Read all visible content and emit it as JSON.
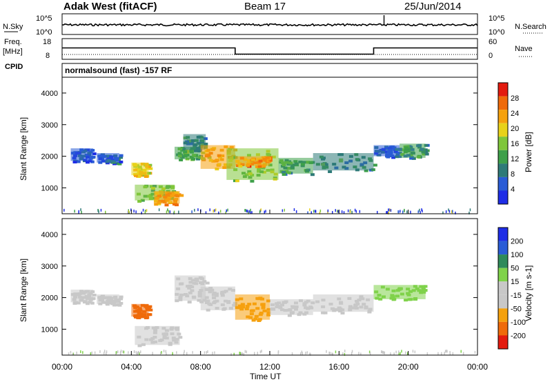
{
  "header": {
    "station": "Adak West (fitACF)",
    "beam": "Beam 17",
    "date": "25/Jun/2014"
  },
  "left_labels": {
    "nsky": "N.Sky",
    "freq_line1": "Freq.",
    "freq_line2": "[MHz]",
    "cpid": "CPID"
  },
  "right_labels": {
    "nsearch": "N.Search",
    "nave": "Nave"
  },
  "cpid_text": "normalsound (fast) -157 RF",
  "colors": {
    "power_scale": [
      "#1e2de6",
      "#2a5cd6",
      "#2e7a78",
      "#3ea04a",
      "#7fc63a",
      "#e8d21a",
      "#f5a10e",
      "#ef6a0a",
      "#e31b0f"
    ],
    "velocity_scale": [
      "#e31b0f",
      "#ef6a0a",
      "#f5a10e",
      "#c8c8c8",
      "#c8c8c8",
      "#7fd24a",
      "#2e8a5a",
      "#2a5cd6",
      "#1e2de6"
    ],
    "ground_scatter": "#c8c8c8"
  },
  "chart_data": [
    {
      "type": "line",
      "panel": "noise",
      "xlabel": "",
      "ylabel_left": "N.Sky",
      "ylabel_right": "N.Search",
      "yticks_left": [
        "10^5",
        "10^0"
      ],
      "yticks_right": [
        "10^5",
        "10^0"
      ],
      "x_range_hours": [
        0,
        24
      ],
      "series": [
        {
          "name": "N.Sky",
          "x_hours": [
            0,
            24
          ],
          "values": [
            10,
            10
          ]
        }
      ],
      "annotations": [
        {
          "x_hours": 18.6,
          "note": "spike"
        }
      ]
    },
    {
      "type": "line",
      "panel": "frequency",
      "ylabel_left": "Freq. [MHz]",
      "ylabel_right": "Nave",
      "yticks_left": [
        "18",
        "8"
      ],
      "yticks_right": [
        "60",
        "0"
      ],
      "x_range_hours": [
        0,
        24
      ],
      "series": [
        {
          "name": "Freq.",
          "x_hours": [
            0,
            10,
            10,
            18,
            18,
            24
          ],
          "values": [
            13.5,
            13.5,
            10.5,
            10.5,
            13.5,
            13.5
          ]
        },
        {
          "name": "Nave",
          "x_hours": [
            0,
            24
          ],
          "values": [
            14,
            14
          ]
        }
      ]
    },
    {
      "type": "heatmap",
      "panel": "power",
      "ylabel": "Slant Range [km]",
      "ylim": [
        180,
        4500
      ],
      "yticks": [
        1000,
        2000,
        3000,
        4000
      ],
      "xlim_hours": [
        0,
        24
      ],
      "colorbar_label": "Power [dB]",
      "colorbar_ticks": [
        "28",
        "24",
        "20",
        "16",
        "12",
        "8",
        "4"
      ],
      "colorbar_range": [
        0,
        30
      ],
      "echo_regions": [
        {
          "t0": 0.5,
          "t1": 1.8,
          "r0": 1850,
          "r1": 2250,
          "value": 5
        },
        {
          "t0": 2.0,
          "t1": 3.3,
          "r0": 1800,
          "r1": 2100,
          "value": 6
        },
        {
          "t0": 4.0,
          "t1": 5.0,
          "r0": 1400,
          "r1": 1800,
          "value": 18
        },
        {
          "t0": 4.2,
          "t1": 6.5,
          "r0": 600,
          "r1": 1100,
          "value": 14
        },
        {
          "t0": 5.3,
          "t1": 6.8,
          "r0": 500,
          "r1": 900,
          "value": 22
        },
        {
          "t0": 6.5,
          "t1": 8.0,
          "r0": 1900,
          "r1": 2300,
          "value": 12
        },
        {
          "t0": 7.0,
          "t1": 8.3,
          "r0": 2200,
          "r1": 2700,
          "value": 9
        },
        {
          "t0": 8.0,
          "t1": 10.0,
          "r0": 1600,
          "r1": 2350,
          "value": 20
        },
        {
          "t0": 9.5,
          "t1": 12.5,
          "r0": 1250,
          "r1": 2250,
          "value": 15
        },
        {
          "t0": 10.0,
          "t1": 12.0,
          "r0": 1700,
          "r1": 2000,
          "value": 22
        },
        {
          "t0": 12.5,
          "t1": 14.5,
          "r0": 1450,
          "r1": 1950,
          "value": 11
        },
        {
          "t0": 14.5,
          "t1": 18.0,
          "r0": 1550,
          "r1": 2100,
          "value": 9
        },
        {
          "t0": 18.0,
          "t1": 19.5,
          "r0": 2000,
          "r1": 2350,
          "value": 6
        },
        {
          "t0": 19.5,
          "t1": 21.0,
          "r0": 1950,
          "r1": 2400,
          "value": 10
        }
      ]
    },
    {
      "type": "heatmap",
      "panel": "velocity",
      "ylabel": "Slant Range [km]",
      "ylim": [
        180,
        4500
      ],
      "yticks": [
        1000,
        2000,
        3000,
        4000
      ],
      "xlim_hours": [
        0,
        24
      ],
      "xticks": [
        "00:00",
        "04:00",
        "08:00",
        "12:00",
        "16:00",
        "20:00",
        "00:00"
      ],
      "xlabel": "Time UT",
      "colorbar_label": "Velocity [m s-1]",
      "colorbar_ticks": [
        "200",
        "100",
        "50",
        "15",
        "-15",
        "-50",
        "-100",
        "-200"
      ],
      "echo_regions": [
        {
          "t0": 0.5,
          "t1": 1.8,
          "r0": 1850,
          "r1": 2250,
          "value": 0
        },
        {
          "t0": 2.0,
          "t1": 3.3,
          "r0": 1800,
          "r1": 2100,
          "value": 0
        },
        {
          "t0": 4.0,
          "t1": 5.0,
          "r0": 1400,
          "r1": 1800,
          "value": -60
        },
        {
          "t0": 4.2,
          "t1": 6.8,
          "r0": 500,
          "r1": 1100,
          "value": 0
        },
        {
          "t0": 6.5,
          "t1": 8.3,
          "r0": 1900,
          "r1": 2700,
          "value": 0
        },
        {
          "t0": 8.0,
          "t1": 10.0,
          "r0": 1600,
          "r1": 2350,
          "value": 0
        },
        {
          "t0": 10.0,
          "t1": 12.0,
          "r0": 1300,
          "r1": 2100,
          "value": -40
        },
        {
          "t0": 12.0,
          "t1": 14.5,
          "r0": 1450,
          "r1": 1950,
          "value": 0
        },
        {
          "t0": 14.5,
          "t1": 18.0,
          "r0": 1550,
          "r1": 2100,
          "value": 0
        },
        {
          "t0": 18.0,
          "t1": 21.0,
          "r0": 1950,
          "r1": 2400,
          "value": 20
        }
      ]
    }
  ]
}
